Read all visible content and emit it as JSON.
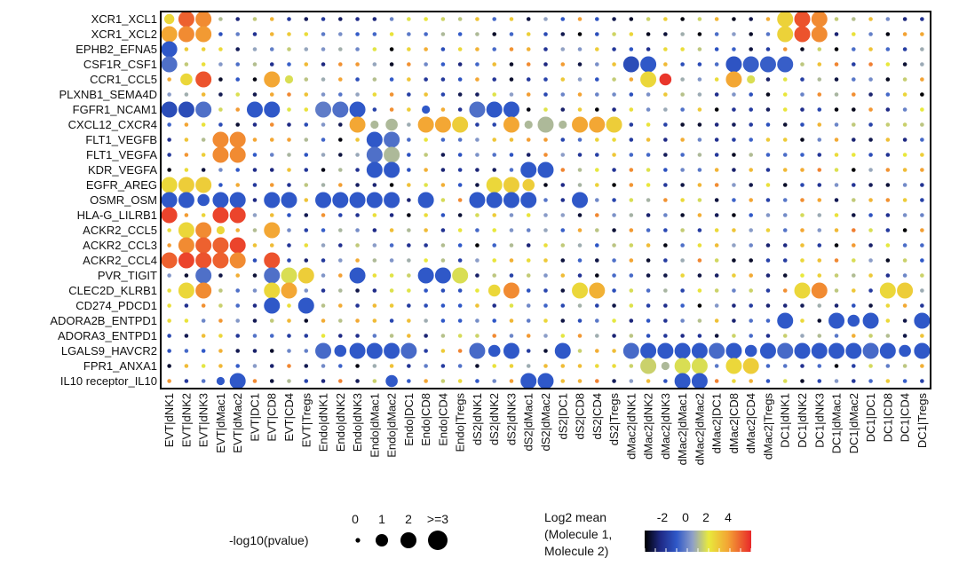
{
  "chart_data": {
    "type": "dotplot",
    "title": "",
    "y_labels": [
      "XCR1_XCL1",
      "XCR1_XCL2",
      "EPHB2_EFNA5",
      "CSF1R_CSF1",
      "CCR1_CCL5",
      "PLXNB1_SEMA4D",
      "FGFR1_NCAM1",
      "CXCL12_CXCR4",
      "FLT1_VEGFB",
      "FLT1_VEGFA",
      "KDR_VEGFA",
      "EGFR_AREG",
      "OSMR_OSM",
      "HLA-G_LILRB1",
      "ACKR2_CCL5",
      "ACKR2_CCL3",
      "ACKR2_CCL4",
      "PVR_TIGIT",
      "CLEC2D_KLRB1",
      "CD274_PDCD1",
      "ADORA2B_ENTPD1",
      "ADORA3_ENTPD1",
      "LGALS9_HAVCR2",
      "FPR1_ANXA1",
      "IL10 receptor_IL10"
    ],
    "x_labels": [
      "EVT|dNK1",
      "EVT|dNK2",
      "EVT|dNK3",
      "EVT|dMac1",
      "EVT|dMac2",
      "EVT|DC1",
      "EVT|CD8",
      "EVT|CD4",
      "EVT|Tregs",
      "Endo|dNK1",
      "Endo|dNK2",
      "Endo|dNK3",
      "Endo|dMac1",
      "Endo|dMac2",
      "Endo|DC1",
      "Endo|CD8",
      "Endo|CD4",
      "Endo|Tregs",
      "dS2|dNK1",
      "dS2|dNK2",
      "dS2|dNK3",
      "dS2|dMac1",
      "dS2|dMac2",
      "dS2|DC1",
      "dS2|CD8",
      "dS2|CD4",
      "dS2|Tregs",
      "dMac2|dNK1",
      "dMac2|dNK2",
      "dMac2|dNK3",
      "dMac2|dMac1",
      "dMac2|dMac2",
      "dMac2|DC1",
      "dMac2|CD8",
      "dMac2|CD4",
      "dMac2|Tregs",
      "DC1|dNK1",
      "DC1|dNK2",
      "DC1|dNK3",
      "DC1|dMac1",
      "DC1|dMac2",
      "DC1|DC1",
      "DC1|CD8",
      "DC1|CD4",
      "DC1|Tregs"
    ],
    "big_points": [
      {
        "row": 0,
        "col": 0,
        "mean": 2.2,
        "p": 1.5
      },
      {
        "row": 0,
        "col": 1,
        "mean": 4.2,
        "p": 3
      },
      {
        "row": 0,
        "col": 2,
        "mean": 3.6,
        "p": 3
      },
      {
        "row": 0,
        "col": 36,
        "mean": 2.3,
        "p": 3
      },
      {
        "row": 0,
        "col": 37,
        "mean": 4.4,
        "p": 3
      },
      {
        "row": 0,
        "col": 38,
        "mean": 3.6,
        "p": 3
      },
      {
        "row": 1,
        "col": 0,
        "mean": 3.2,
        "p": 3
      },
      {
        "row": 1,
        "col": 1,
        "mean": 3.6,
        "p": 3
      },
      {
        "row": 1,
        "col": 2,
        "mean": 3.4,
        "p": 3
      },
      {
        "row": 1,
        "col": 36,
        "mean": 2.3,
        "p": 3
      },
      {
        "row": 1,
        "col": 37,
        "mean": 4.4,
        "p": 3
      },
      {
        "row": 1,
        "col": 38,
        "mean": 3.6,
        "p": 3
      },
      {
        "row": 2,
        "col": 0,
        "mean": -0.6,
        "p": 3
      },
      {
        "row": 3,
        "col": 0,
        "mean": -0.2,
        "p": 3
      },
      {
        "row": 3,
        "col": 27,
        "mean": -0.9,
        "p": 3
      },
      {
        "row": 3,
        "col": 28,
        "mean": -0.6,
        "p": 3
      },
      {
        "row": 3,
        "col": 33,
        "mean": -0.7,
        "p": 3
      },
      {
        "row": 3,
        "col": 34,
        "mean": -0.5,
        "p": 3
      },
      {
        "row": 3,
        "col": 35,
        "mean": -0.5,
        "p": 3
      },
      {
        "row": 3,
        "col": 36,
        "mean": -0.5,
        "p": 3
      },
      {
        "row": 4,
        "col": 1,
        "mean": 2.2,
        "p": 2
      },
      {
        "row": 4,
        "col": 2,
        "mean": 4.4,
        "p": 3
      },
      {
        "row": 4,
        "col": 6,
        "mean": 3.2,
        "p": 3
      },
      {
        "row": 4,
        "col": 7,
        "mean": 1.6,
        "p": 1
      },
      {
        "row": 4,
        "col": 28,
        "mean": 2.2,
        "p": 3
      },
      {
        "row": 4,
        "col": 29,
        "mean": 4.8,
        "p": 2
      },
      {
        "row": 4,
        "col": 33,
        "mean": 3.2,
        "p": 3
      },
      {
        "row": 4,
        "col": 34,
        "mean": 1.6,
        "p": 1
      },
      {
        "row": 6,
        "col": 0,
        "mean": -0.9,
        "p": 3
      },
      {
        "row": 6,
        "col": 1,
        "mean": -0.9,
        "p": 3
      },
      {
        "row": 6,
        "col": 2,
        "mean": -0.2,
        "p": 3
      },
      {
        "row": 6,
        "col": 5,
        "mean": -0.6,
        "p": 3
      },
      {
        "row": 6,
        "col": 6,
        "mean": -0.6,
        "p": 3
      },
      {
        "row": 6,
        "col": 9,
        "mean": 0.0,
        "p": 3
      },
      {
        "row": 6,
        "col": 10,
        "mean": -0.2,
        "p": 3
      },
      {
        "row": 6,
        "col": 11,
        "mean": -0.6,
        "p": 3
      },
      {
        "row": 6,
        "col": 15,
        "mean": -0.6,
        "p": 1
      },
      {
        "row": 6,
        "col": 18,
        "mean": -0.2,
        "p": 3
      },
      {
        "row": 6,
        "col": 19,
        "mean": -0.6,
        "p": 3
      },
      {
        "row": 6,
        "col": 20,
        "mean": -0.6,
        "p": 3
      },
      {
        "row": 7,
        "col": 11,
        "mean": 3.2,
        "p": 3
      },
      {
        "row": 7,
        "col": 12,
        "mean": 1.0,
        "p": 1
      },
      {
        "row": 7,
        "col": 13,
        "mean": 1.0,
        "p": 2
      },
      {
        "row": 7,
        "col": 15,
        "mean": 3.2,
        "p": 3
      },
      {
        "row": 7,
        "col": 16,
        "mean": 3.2,
        "p": 3
      },
      {
        "row": 7,
        "col": 17,
        "mean": 2.4,
        "p": 3
      },
      {
        "row": 7,
        "col": 20,
        "mean": 3.2,
        "p": 3
      },
      {
        "row": 7,
        "col": 21,
        "mean": 1.0,
        "p": 1
      },
      {
        "row": 7,
        "col": 22,
        "mean": 1.0,
        "p": 3
      },
      {
        "row": 7,
        "col": 23,
        "mean": 1.0,
        "p": 1
      },
      {
        "row": 7,
        "col": 24,
        "mean": 3.2,
        "p": 3
      },
      {
        "row": 7,
        "col": 25,
        "mean": 3.2,
        "p": 3
      },
      {
        "row": 7,
        "col": 26,
        "mean": 2.4,
        "p": 3
      },
      {
        "row": 8,
        "col": 3,
        "mean": 3.6,
        "p": 3
      },
      {
        "row": 8,
        "col": 4,
        "mean": 3.6,
        "p": 3
      },
      {
        "row": 8,
        "col": 12,
        "mean": -0.6,
        "p": 3
      },
      {
        "row": 8,
        "col": 13,
        "mean": -0.2,
        "p": 3
      },
      {
        "row": 9,
        "col": 3,
        "mean": 3.6,
        "p": 3
      },
      {
        "row": 9,
        "col": 4,
        "mean": 3.6,
        "p": 3
      },
      {
        "row": 9,
        "col": 12,
        "mean": -0.2,
        "p": 3
      },
      {
        "row": 9,
        "col": 13,
        "mean": 1.0,
        "p": 3
      },
      {
        "row": 10,
        "col": 12,
        "mean": -0.6,
        "p": 3
      },
      {
        "row": 10,
        "col": 13,
        "mean": -0.6,
        "p": 3
      },
      {
        "row": 10,
        "col": 21,
        "mean": -0.6,
        "p": 3
      },
      {
        "row": 10,
        "col": 22,
        "mean": -0.6,
        "p": 3
      },
      {
        "row": 11,
        "col": 0,
        "mean": 2.2,
        "p": 3
      },
      {
        "row": 11,
        "col": 1,
        "mean": 2.4,
        "p": 3
      },
      {
        "row": 11,
        "col": 2,
        "mean": 2.4,
        "p": 3
      },
      {
        "row": 11,
        "col": 19,
        "mean": 2.2,
        "p": 3
      },
      {
        "row": 11,
        "col": 20,
        "mean": 2.4,
        "p": 3
      },
      {
        "row": 11,
        "col": 21,
        "mean": 2.4,
        "p": 2
      },
      {
        "row": 12,
        "col": 0,
        "mean": -0.6,
        "p": 3
      },
      {
        "row": 12,
        "col": 1,
        "mean": -0.6,
        "p": 3
      },
      {
        "row": 12,
        "col": 2,
        "mean": -0.6,
        "p": 2
      },
      {
        "row": 12,
        "col": 3,
        "mean": -0.6,
        "p": 3
      },
      {
        "row": 12,
        "col": 4,
        "mean": -0.6,
        "p": 3
      },
      {
        "row": 12,
        "col": 6,
        "mean": -0.6,
        "p": 3
      },
      {
        "row": 12,
        "col": 7,
        "mean": -0.6,
        "p": 3
      },
      {
        "row": 12,
        "col": 9,
        "mean": -0.6,
        "p": 3
      },
      {
        "row": 12,
        "col": 10,
        "mean": -0.6,
        "p": 3
      },
      {
        "row": 12,
        "col": 11,
        "mean": -0.6,
        "p": 3
      },
      {
        "row": 12,
        "col": 12,
        "mean": -0.6,
        "p": 3
      },
      {
        "row": 12,
        "col": 13,
        "mean": -0.6,
        "p": 3
      },
      {
        "row": 12,
        "col": 15,
        "mean": -0.6,
        "p": 3
      },
      {
        "row": 12,
        "col": 18,
        "mean": -0.6,
        "p": 3
      },
      {
        "row": 12,
        "col": 19,
        "mean": -0.6,
        "p": 3
      },
      {
        "row": 12,
        "col": 20,
        "mean": -0.6,
        "p": 3
      },
      {
        "row": 12,
        "col": 21,
        "mean": -0.6,
        "p": 3
      },
      {
        "row": 12,
        "col": 24,
        "mean": -0.6,
        "p": 3
      },
      {
        "row": 13,
        "col": 0,
        "mean": 4.6,
        "p": 3
      },
      {
        "row": 13,
        "col": 3,
        "mean": 4.6,
        "p": 3
      },
      {
        "row": 13,
        "col": 4,
        "mean": 4.6,
        "p": 3
      },
      {
        "row": 14,
        "col": 1,
        "mean": 2.2,
        "p": 3
      },
      {
        "row": 14,
        "col": 2,
        "mean": 3.6,
        "p": 3
      },
      {
        "row": 14,
        "col": 3,
        "mean": 2.2,
        "p": 1
      },
      {
        "row": 14,
        "col": 6,
        "mean": 3.2,
        "p": 3
      },
      {
        "row": 15,
        "col": 1,
        "mean": 3.6,
        "p": 3
      },
      {
        "row": 15,
        "col": 2,
        "mean": 4.2,
        "p": 3
      },
      {
        "row": 15,
        "col": 3,
        "mean": 4.2,
        "p": 3
      },
      {
        "row": 15,
        "col": 4,
        "mean": 4.6,
        "p": 3
      },
      {
        "row": 16,
        "col": 0,
        "mean": 4.2,
        "p": 3
      },
      {
        "row": 16,
        "col": 1,
        "mean": 4.6,
        "p": 3
      },
      {
        "row": 16,
        "col": 2,
        "mean": 4.4,
        "p": 3
      },
      {
        "row": 16,
        "col": 3,
        "mean": 4.2,
        "p": 3
      },
      {
        "row": 16,
        "col": 4,
        "mean": 3.6,
        "p": 3
      },
      {
        "row": 16,
        "col": 6,
        "mean": 4.4,
        "p": 3
      },
      {
        "row": 17,
        "col": 2,
        "mean": -0.2,
        "p": 3
      },
      {
        "row": 17,
        "col": 6,
        "mean": -0.2,
        "p": 3
      },
      {
        "row": 17,
        "col": 7,
        "mean": 1.6,
        "p": 3
      },
      {
        "row": 17,
        "col": 8,
        "mean": 2.4,
        "p": 3
      },
      {
        "row": 17,
        "col": 11,
        "mean": -0.6,
        "p": 3
      },
      {
        "row": 17,
        "col": 15,
        "mean": -0.6,
        "p": 3
      },
      {
        "row": 17,
        "col": 16,
        "mean": -0.6,
        "p": 3
      },
      {
        "row": 17,
        "col": 17,
        "mean": 1.6,
        "p": 3
      },
      {
        "row": 18,
        "col": 1,
        "mean": 2.2,
        "p": 3
      },
      {
        "row": 18,
        "col": 2,
        "mean": 3.6,
        "p": 3
      },
      {
        "row": 18,
        "col": 6,
        "mean": 2.2,
        "p": 3
      },
      {
        "row": 18,
        "col": 7,
        "mean": 3.2,
        "p": 3
      },
      {
        "row": 18,
        "col": 19,
        "mean": 2.2,
        "p": 2
      },
      {
        "row": 18,
        "col": 20,
        "mean": 3.6,
        "p": 3
      },
      {
        "row": 18,
        "col": 24,
        "mean": 2.2,
        "p": 3
      },
      {
        "row": 18,
        "col": 25,
        "mean": 3.0,
        "p": 3
      },
      {
        "row": 18,
        "col": 37,
        "mean": 2.2,
        "p": 3
      },
      {
        "row": 18,
        "col": 38,
        "mean": 3.6,
        "p": 3
      },
      {
        "row": 18,
        "col": 42,
        "mean": 2.2,
        "p": 3
      },
      {
        "row": 18,
        "col": 43,
        "mean": 2.4,
        "p": 3
      },
      {
        "row": 19,
        "col": 6,
        "mean": -0.6,
        "p": 3
      },
      {
        "row": 19,
        "col": 8,
        "mean": -0.6,
        "p": 3
      },
      {
        "row": 20,
        "col": 36,
        "mean": -0.6,
        "p": 3
      },
      {
        "row": 20,
        "col": 39,
        "mean": -0.6,
        "p": 3
      },
      {
        "row": 20,
        "col": 40,
        "mean": -0.6,
        "p": 2
      },
      {
        "row": 20,
        "col": 41,
        "mean": -0.6,
        "p": 3
      },
      {
        "row": 20,
        "col": 44,
        "mean": -0.6,
        "p": 3
      },
      {
        "row": 22,
        "col": 9,
        "mean": -0.3,
        "p": 3
      },
      {
        "row": 22,
        "col": 10,
        "mean": -0.6,
        "p": 2
      },
      {
        "row": 22,
        "col": 11,
        "mean": -0.6,
        "p": 3
      },
      {
        "row": 22,
        "col": 12,
        "mean": -0.6,
        "p": 3
      },
      {
        "row": 22,
        "col": 13,
        "mean": -0.6,
        "p": 3
      },
      {
        "row": 22,
        "col": 14,
        "mean": -0.3,
        "p": 3
      },
      {
        "row": 22,
        "col": 18,
        "mean": -0.3,
        "p": 3
      },
      {
        "row": 22,
        "col": 19,
        "mean": -0.6,
        "p": 2
      },
      {
        "row": 22,
        "col": 20,
        "mean": -0.6,
        "p": 3
      },
      {
        "row": 22,
        "col": 23,
        "mean": -0.6,
        "p": 3
      },
      {
        "row": 22,
        "col": 27,
        "mean": -0.3,
        "p": 3
      },
      {
        "row": 22,
        "col": 28,
        "mean": -0.6,
        "p": 3
      },
      {
        "row": 22,
        "col": 29,
        "mean": -0.6,
        "p": 3
      },
      {
        "row": 22,
        "col": 30,
        "mean": -0.6,
        "p": 3
      },
      {
        "row": 22,
        "col": 31,
        "mean": -0.6,
        "p": 3
      },
      {
        "row": 22,
        "col": 32,
        "mean": -0.3,
        "p": 3
      },
      {
        "row": 22,
        "col": 33,
        "mean": -0.6,
        "p": 3
      },
      {
        "row": 22,
        "col": 34,
        "mean": -0.6,
        "p": 2
      },
      {
        "row": 22,
        "col": 35,
        "mean": -0.6,
        "p": 3
      },
      {
        "row": 22,
        "col": 36,
        "mean": -0.3,
        "p": 3
      },
      {
        "row": 22,
        "col": 37,
        "mean": -0.6,
        "p": 3
      },
      {
        "row": 22,
        "col": 38,
        "mean": -0.6,
        "p": 3
      },
      {
        "row": 22,
        "col": 39,
        "mean": -0.6,
        "p": 3
      },
      {
        "row": 22,
        "col": 40,
        "mean": -0.6,
        "p": 3
      },
      {
        "row": 22,
        "col": 41,
        "mean": -0.3,
        "p": 3
      },
      {
        "row": 22,
        "col": 42,
        "mean": -0.6,
        "p": 3
      },
      {
        "row": 22,
        "col": 43,
        "mean": -0.6,
        "p": 2
      },
      {
        "row": 22,
        "col": 44,
        "mean": -0.6,
        "p": 3
      },
      {
        "row": 23,
        "col": 28,
        "mean": 1.4,
        "p": 3
      },
      {
        "row": 23,
        "col": 29,
        "mean": 1.0,
        "p": 1
      },
      {
        "row": 23,
        "col": 30,
        "mean": 1.6,
        "p": 3
      },
      {
        "row": 23,
        "col": 31,
        "mean": 1.6,
        "p": 3
      },
      {
        "row": 23,
        "col": 33,
        "mean": 2.2,
        "p": 3
      },
      {
        "row": 23,
        "col": 34,
        "mean": 2.4,
        "p": 3
      },
      {
        "row": 24,
        "col": 3,
        "mean": -0.6,
        "p": 1
      },
      {
        "row": 24,
        "col": 4,
        "mean": -0.6,
        "p": 3
      },
      {
        "row": 24,
        "col": 13,
        "mean": -0.6,
        "p": 2
      },
      {
        "row": 24,
        "col": 21,
        "mean": -0.6,
        "p": 3
      },
      {
        "row": 24,
        "col": 22,
        "mean": -0.6,
        "p": 3
      },
      {
        "row": 24,
        "col": 30,
        "mean": -0.6,
        "p": 3
      },
      {
        "row": 24,
        "col": 31,
        "mean": -0.6,
        "p": 3
      }
    ],
    "size_legend": {
      "title": "-log10(pvalue)",
      "labels": [
        "0",
        "1",
        "2",
        ">=3"
      ],
      "values": [
        0,
        1,
        2,
        3
      ]
    },
    "color_legend": {
      "title_lines": [
        "Log2 mean",
        "(Molecule 1,",
        "Molecule 2)"
      ],
      "tick_labels": [
        "-2",
        "0",
        "2",
        "4"
      ],
      "range": [
        -3,
        5
      ]
    },
    "colors": {
      "scale": [
        "#000000",
        "#1f2a86",
        "#2f58c8",
        "#8fa0c8",
        "#e8ea3c",
        "#f3a534",
        "#e8282a"
      ]
    }
  }
}
